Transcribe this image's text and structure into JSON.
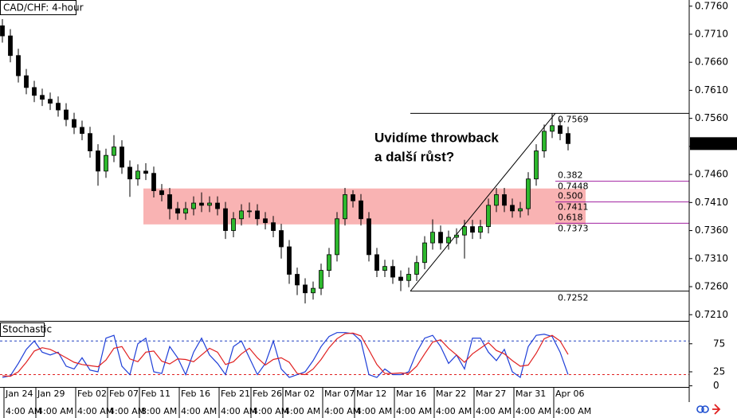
{
  "chart_data": [
    {
      "type": "candlestick",
      "title": "CAD/CHF: 4-hour",
      "open": [
        0.7725,
        0.7707,
        0.7672,
        0.7636,
        0.7615,
        0.7601,
        0.7594,
        0.7587,
        0.7575,
        0.7558,
        0.7544,
        0.7533,
        0.7502,
        0.7466,
        0.7494,
        0.7509,
        0.7473,
        0.7452,
        0.7466,
        0.7462,
        0.7431,
        0.7424,
        0.7399,
        0.7391,
        0.7399,
        0.7409,
        0.7405,
        0.7409,
        0.7399,
        0.736,
        0.7381,
        0.7395,
        0.7395,
        0.7381,
        0.7374,
        0.736,
        0.7331,
        0.7282,
        0.7263,
        0.7249,
        0.7257,
        0.7289,
        0.7317,
        0.7381,
        0.7424,
        0.7413,
        0.7381,
        0.7317,
        0.7289,
        0.7296,
        0.7277,
        0.7271,
        0.7282,
        0.7303,
        0.7338,
        0.7357,
        0.7338,
        0.7348,
        0.7352,
        0.7367,
        0.7357,
        0.7367,
        0.7405,
        0.7424,
        0.7405,
        0.7395,
        0.7399,
        0.7452,
        0.7502,
        0.7537,
        0.7547,
        0.7533
      ],
      "high": [
        0.7737,
        0.7719,
        0.7684,
        0.7648,
        0.7627,
        0.7613,
        0.7606,
        0.7599,
        0.7587,
        0.757,
        0.7556,
        0.7545,
        0.7514,
        0.7506,
        0.753,
        0.7521,
        0.7485,
        0.7478,
        0.748,
        0.7474,
        0.7443,
        0.7436,
        0.7411,
        0.7411,
        0.7421,
        0.7428,
        0.7421,
        0.7421,
        0.7411,
        0.7393,
        0.7407,
        0.741,
        0.7407,
        0.7393,
        0.7386,
        0.7372,
        0.7343,
        0.7294,
        0.7275,
        0.7269,
        0.7301,
        0.7329,
        0.7393,
        0.7436,
        0.7432,
        0.7425,
        0.7393,
        0.7329,
        0.7308,
        0.7308,
        0.7289,
        0.7294,
        0.7315,
        0.735,
        0.738,
        0.7369,
        0.736,
        0.7364,
        0.7379,
        0.7379,
        0.7379,
        0.7417,
        0.7436,
        0.7436,
        0.7417,
        0.7411,
        0.7464,
        0.7514,
        0.7549,
        0.7569,
        0.7559,
        0.7545
      ],
      "low": [
        0.7695,
        0.766,
        0.7624,
        0.7603,
        0.7589,
        0.7582,
        0.7575,
        0.7563,
        0.7546,
        0.7532,
        0.7521,
        0.749,
        0.744,
        0.7454,
        0.7482,
        0.7461,
        0.742,
        0.744,
        0.745,
        0.7419,
        0.7412,
        0.738,
        0.7379,
        0.7379,
        0.7387,
        0.7393,
        0.7393,
        0.7387,
        0.7345,
        0.7348,
        0.7369,
        0.7383,
        0.7369,
        0.7362,
        0.7348,
        0.731,
        0.7265,
        0.7245,
        0.723,
        0.7237,
        0.7245,
        0.7277,
        0.7305,
        0.7369,
        0.7401,
        0.7369,
        0.7305,
        0.7277,
        0.7277,
        0.7265,
        0.7252,
        0.7259,
        0.727,
        0.7291,
        0.7326,
        0.7326,
        0.7326,
        0.7336,
        0.731,
        0.7345,
        0.7345,
        0.7355,
        0.7393,
        0.7393,
        0.7383,
        0.7383,
        0.7387,
        0.744,
        0.749,
        0.7525,
        0.7521,
        0.7503
      ],
      "close": [
        0.7707,
        0.7672,
        0.7636,
        0.7615,
        0.7601,
        0.7594,
        0.7587,
        0.7575,
        0.7558,
        0.7544,
        0.7533,
        0.7502,
        0.7466,
        0.7494,
        0.7509,
        0.7473,
        0.7452,
        0.7466,
        0.7462,
        0.7431,
        0.7424,
        0.7399,
        0.7391,
        0.7399,
        0.7409,
        0.7405,
        0.7409,
        0.7399,
        0.736,
        0.7381,
        0.7395,
        0.7395,
        0.7381,
        0.7374,
        0.736,
        0.7331,
        0.7282,
        0.7263,
        0.7249,
        0.7257,
        0.7289,
        0.7317,
        0.7381,
        0.7424,
        0.7413,
        0.7381,
        0.7317,
        0.7289,
        0.7296,
        0.7277,
        0.7271,
        0.7282,
        0.7303,
        0.7338,
        0.7357,
        0.7338,
        0.7348,
        0.7352,
        0.7367,
        0.7357,
        0.7367,
        0.7405,
        0.7424,
        0.7405,
        0.7395,
        0.7399,
        0.7452,
        0.7502,
        0.7537,
        0.7547,
        0.7533,
        0.7515
      ],
      "up_color": "#2db82d",
      "down_color": "#000000",
      "ylim": [
        0.7199,
        0.7771
      ],
      "yticks": [
        {
          "value": 0.776,
          "label": "0.7760"
        },
        {
          "value": 0.771,
          "label": "0.7710"
        },
        {
          "value": 0.766,
          "label": "0.7660"
        },
        {
          "value": 0.761,
          "label": "0.7610"
        },
        {
          "value": 0.756,
          "label": "0.7560"
        },
        {
          "value": 0.751,
          "label": "0.7510"
        },
        {
          "value": 0.746,
          "label": "0.7460"
        },
        {
          "value": 0.741,
          "label": "0.7410"
        },
        {
          "value": 0.736,
          "label": "0.7360"
        },
        {
          "value": 0.731,
          "label": "0.7310"
        },
        {
          "value": 0.726,
          "label": "0.7260"
        },
        {
          "value": 0.721,
          "label": "0.7210"
        }
      ],
      "last_price": 0.7515,
      "zone": [
        0.7371,
        0.7435
      ],
      "zone_color": "#f9b3b3",
      "fib": {
        "swing_high": 0.7569,
        "swing_low": 0.7252,
        "color": "#a020a0",
        "levels": [
          {
            "ratio": 0.382,
            "price": 0.7448
          },
          {
            "ratio": {
              "value": 0.5,
              "label": "0.500"
            },
            "price": 0.7411
          },
          {
            "ratio": 0.618,
            "price": 0.7373
          }
        ]
      },
      "annotation": [
        "Uvidíme throwback",
        "a další růst?"
      ]
    },
    {
      "type": "line",
      "title": "Stochastic",
      "series": [
        {
          "color": "#1f3fd8",
          "values": [
            15,
            18,
            40,
            65,
            80,
            60,
            55,
            60,
            35,
            30,
            50,
            28,
            25,
            85,
            90,
            35,
            20,
            75,
            85,
            25,
            22,
            70,
            50,
            20,
            60,
            85,
            55,
            40,
            20,
            70,
            80,
            50,
            20,
            40,
            80,
            30,
            15,
            20,
            25,
            45,
            70,
            88,
            95,
            95,
            93,
            80,
            20,
            15,
            30,
            20,
            20,
            25,
            60,
            85,
            90,
            70,
            40,
            55,
            30,
            85,
            85,
            60,
            45,
            65,
            25,
            15,
            70,
            90,
            92,
            88,
            60,
            20
          ]
        },
        {
          "color": "#e02020",
          "values": [
            18,
            17,
            25,
            42,
            62,
            68,
            65,
            58,
            50,
            42,
            38,
            36,
            34,
            46,
            67,
            70,
            48,
            43,
            60,
            62,
            44,
            39,
            48,
            47,
            43,
            55,
            67,
            60,
            38,
            43,
            57,
            67,
            50,
            37,
            47,
            50,
            42,
            22,
            20,
            30,
            47,
            68,
            84,
            93,
            94,
            89,
            64,
            38,
            22,
            22,
            23,
            22,
            35,
            57,
            78,
            82,
            67,
            55,
            42,
            57,
            67,
            77,
            63,
            57,
            45,
            35,
            37,
            58,
            84,
            90,
            80,
            56
          ]
        }
      ],
      "levels": [
        80,
        20
      ],
      "level_colors": [
        "#2040c0",
        "#e02020"
      ],
      "ylim": [
        -2,
        113
      ],
      "yticks": [
        75,
        25,
        0
      ],
      "categories": [
        null,
        "Jan 24",
        null,
        null,
        null,
        "Jan 29",
        null,
        null,
        null,
        null,
        "Feb 02",
        null,
        null,
        null,
        "Feb 07",
        null,
        null,
        null,
        "Feb 11",
        null,
        null,
        null,
        null,
        "Feb 16",
        null,
        null,
        null,
        null,
        "Feb 21",
        null,
        null,
        null,
        "Feb 26",
        null,
        null,
        null,
        "Mar 02",
        null,
        null,
        null,
        null,
        "Mar 07",
        null,
        null,
        null,
        "Mar 12",
        null,
        null,
        null,
        null,
        "Mar 16",
        null,
        null,
        null,
        null,
        "Mar 22",
        null,
        null,
        null,
        null,
        "Mar 27",
        null,
        null,
        null,
        null,
        "Mar 31",
        null,
        null,
        null,
        null,
        "Apr 06",
        null
      ],
      "time_labels": [
        null,
        "4:00 AM",
        null,
        null,
        null,
        "4:00 AM",
        null,
        null,
        null,
        null,
        "4:00 AM",
        null,
        null,
        null,
        "4:00 AM",
        null,
        null,
        null,
        "8:00 AM",
        null,
        null,
        null,
        null,
        "4:00 AM",
        null,
        null,
        null,
        null,
        "4:00 AM",
        null,
        null,
        null,
        "4:00 AM",
        null,
        null,
        null,
        "4:00 AM",
        null,
        null,
        null,
        null,
        "4:00 AM",
        null,
        null,
        null,
        "4:00 AM",
        null,
        null,
        null,
        null,
        "4:00 AM",
        null,
        null,
        null,
        null,
        "4:00 AM",
        null,
        null,
        null,
        null,
        "4:00 AM",
        null,
        null,
        null,
        null,
        "4:00 AM",
        null,
        null,
        null,
        null,
        "4:00 AM",
        null
      ]
    }
  ]
}
